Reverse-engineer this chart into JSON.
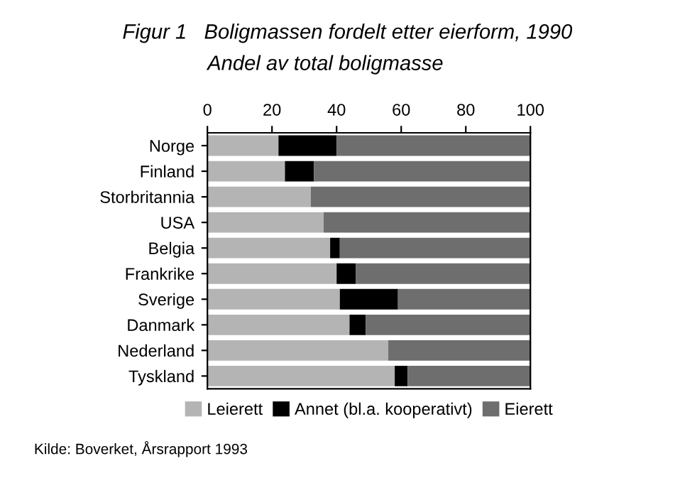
{
  "chart_data": {
    "type": "bar",
    "orientation": "horizontal",
    "stacked": true,
    "title": "Figur 1   Boligmassen fordelt etter eierform, 1990",
    "subtitle": "Andel av total boligmasse",
    "categories": [
      "Norge",
      "Finland",
      "Storbritannia",
      "USA",
      "Belgia",
      "Frankrike",
      "Sverige",
      "Danmark",
      "Nederland",
      "Tyskland"
    ],
    "series": [
      {
        "name": "Leierett",
        "color": "#b4b4b4",
        "values": [
          22,
          24,
          32,
          36,
          38,
          40,
          41,
          44,
          56,
          58
        ]
      },
      {
        "name": "Annet (bl.a. kooperativt)",
        "color": "#000000",
        "values": [
          18,
          9,
          0,
          0,
          3,
          6,
          18,
          5,
          0,
          4
        ]
      },
      {
        "name": "Eierett",
        "color": "#6e6e6e",
        "values": [
          60,
          67,
          68,
          64,
          59,
          54,
          41,
          51,
          44,
          38
        ]
      }
    ],
    "xlim": [
      0,
      100
    ],
    "xticks": [
      0,
      20,
      40,
      60,
      80,
      100
    ],
    "grid": false,
    "legend": "bottom",
    "annotations": [
      "Kilde: Boverket, Årsrapport 1993"
    ]
  }
}
